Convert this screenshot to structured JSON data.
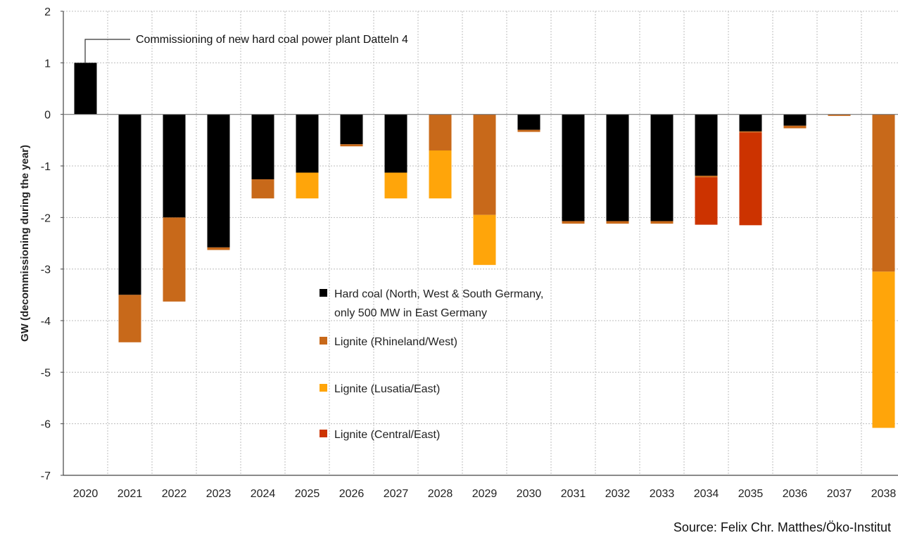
{
  "chart_data": {
    "type": "bar",
    "stacked": true,
    "ylabel": "GW (decommissioning during the year)",
    "ylim": [
      -7,
      2
    ],
    "yticks": [
      2,
      1,
      0,
      -1,
      -2,
      -3,
      -4,
      -5,
      -6,
      -7
    ],
    "grid": true,
    "legend_position": "center",
    "categories": [
      "2020",
      "2021",
      "2022",
      "2023",
      "2024",
      "2025",
      "2026",
      "2027",
      "2028",
      "2029",
      "2030",
      "2031",
      "2032",
      "2033",
      "2034",
      "2035",
      "2036",
      "2037",
      "2038"
    ],
    "series": [
      {
        "name": "Hard coal (North, West & South Germany, only 500 MW in East Germany",
        "color": "#000000",
        "values": [
          1.0,
          -3.5,
          -2.0,
          -2.58,
          -1.26,
          -1.13,
          -0.58,
          -1.13,
          0,
          0,
          -0.3,
          -2.07,
          -2.07,
          -2.07,
          -1.19,
          -0.33,
          -0.22,
          0,
          0
        ]
      },
      {
        "name": "Lignite (Rhineland/West)",
        "color": "#c8691a",
        "values": [
          0,
          -0.92,
          -1.63,
          -0.05,
          -0.37,
          0,
          -0.04,
          0,
          -0.7,
          -1.95,
          -0.04,
          -0.05,
          -0.05,
          -0.05,
          -0.03,
          -0.02,
          -0.05,
          -0.03,
          -3.05
        ]
      },
      {
        "name": "Lignite (Lusatia/East)",
        "color": "#ffa50a",
        "values": [
          0,
          0,
          0,
          0,
          0,
          -0.5,
          0,
          -0.5,
          -0.93,
          -0.97,
          0,
          0,
          0,
          0,
          0,
          0,
          0,
          0,
          -3.03
        ]
      },
      {
        "name": "Lignite (Central/East)",
        "color": "#cc3300",
        "values": [
          0,
          0,
          0,
          0,
          0,
          0,
          0,
          0,
          0,
          0,
          0,
          0,
          0,
          0,
          -0.92,
          -1.8,
          0,
          0,
          0
        ]
      }
    ],
    "annotations": [
      {
        "text": "Commissioning of new hard coal power plant Datteln 4",
        "category": "2020"
      }
    ],
    "source": "Source: Felix Chr. Matthes/Öko-Institut"
  }
}
